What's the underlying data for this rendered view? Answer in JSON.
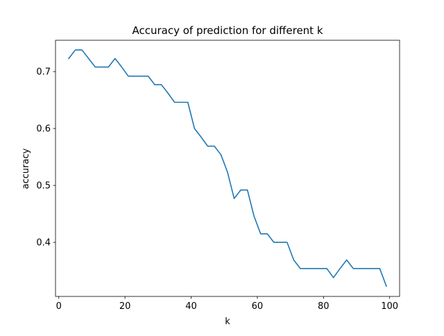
{
  "chart_data": {
    "type": "line",
    "title": "Accuracy of prediction for different k",
    "xlabel": "k",
    "ylabel": "accuracy",
    "xlim": [
      -1,
      103
    ],
    "ylim": [
      0.305,
      0.755
    ],
    "xticks": [
      0,
      20,
      40,
      60,
      80,
      100
    ],
    "yticks": [
      0.4,
      0.5,
      0.6,
      0.7
    ],
    "xtick_labels": [
      "0",
      "20",
      "40",
      "60",
      "80",
      "100"
    ],
    "ytick_labels": [
      "0.4",
      "0.5",
      "0.6",
      "0.7"
    ],
    "grid": false,
    "series": [
      {
        "color": "#1f77b4",
        "x": [
          3,
          5,
          7,
          9,
          11,
          13,
          15,
          17,
          19,
          21,
          23,
          25,
          27,
          29,
          31,
          33,
          35,
          37,
          39,
          41,
          43,
          45,
          47,
          49,
          51,
          53,
          55,
          57,
          59,
          61,
          63,
          65,
          67,
          69,
          71,
          73,
          75,
          77,
          79,
          81,
          83,
          85,
          87,
          89,
          91,
          93,
          95,
          97,
          99
        ],
        "y": [
          0.723,
          0.738,
          0.738,
          0.723,
          0.708,
          0.708,
          0.708,
          0.723,
          0.708,
          0.692,
          0.692,
          0.692,
          0.692,
          0.677,
          0.677,
          0.662,
          0.646,
          0.646,
          0.646,
          0.6,
          0.585,
          0.569,
          0.569,
          0.554,
          0.523,
          0.477,
          0.492,
          0.492,
          0.446,
          0.415,
          0.415,
          0.4,
          0.4,
          0.4,
          0.369,
          0.354,
          0.354,
          0.354,
          0.354,
          0.354,
          0.338,
          0.354,
          0.369,
          0.354,
          0.354,
          0.354,
          0.354,
          0.354,
          0.323
        ]
      }
    ]
  }
}
